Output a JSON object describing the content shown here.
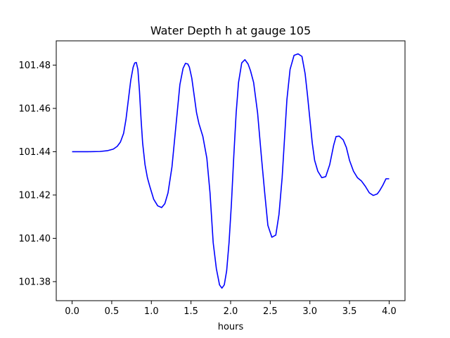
{
  "chart_data": {
    "type": "line",
    "title": "Water Depth h at gauge 105",
    "xlabel": "hours",
    "ylabel": "",
    "xlim": [
      -0.2,
      4.2
    ],
    "ylim": [
      101.3712,
      101.4912
    ],
    "xticks": [
      0.0,
      0.5,
      1.0,
      1.5,
      2.0,
      2.5,
      3.0,
      3.5,
      4.0
    ],
    "xtick_labels": [
      "0.0",
      "0.5",
      "1.0",
      "1.5",
      "2.0",
      "2.5",
      "3.0",
      "3.5",
      "4.0"
    ],
    "yticks": [
      101.38,
      101.4,
      101.42,
      101.44,
      101.46,
      101.48
    ],
    "ytick_labels": [
      "101.38",
      "101.40",
      "101.42",
      "101.44",
      "101.46",
      "101.48"
    ],
    "grid": false,
    "series": [
      {
        "color": "#0000ff",
        "x": [
          0.0,
          0.2,
          0.35,
          0.45,
          0.52,
          0.57,
          0.61,
          0.65,
          0.68,
          0.71,
          0.74,
          0.77,
          0.79,
          0.81,
          0.83,
          0.85,
          0.87,
          0.89,
          0.92,
          0.95,
          0.98,
          1.03,
          1.08,
          1.13,
          1.17,
          1.21,
          1.26,
          1.31,
          1.36,
          1.4,
          1.43,
          1.46,
          1.48,
          1.51,
          1.54,
          1.57,
          1.6,
          1.65,
          1.7,
          1.74,
          1.78,
          1.82,
          1.86,
          1.89,
          1.92,
          1.95,
          1.98,
          2.01,
          2.04,
          2.07,
          2.1,
          2.14,
          2.18,
          2.22,
          2.25,
          2.29,
          2.34,
          2.39,
          2.43,
          2.47,
          2.52,
          2.57,
          2.61,
          2.65,
          2.68,
          2.71,
          2.75,
          2.8,
          2.85,
          2.9,
          2.94,
          2.97,
          3.0,
          3.03,
          3.06,
          3.1,
          3.15,
          3.2,
          3.25,
          3.3,
          3.33,
          3.37,
          3.42,
          3.46,
          3.5,
          3.55,
          3.6,
          3.65,
          3.7,
          3.75,
          3.8,
          3.85,
          3.88,
          3.92,
          3.96,
          4.0
        ],
        "y": [
          101.44,
          101.44,
          101.4401,
          101.4405,
          101.4412,
          101.4425,
          101.4445,
          101.4485,
          101.455,
          101.464,
          101.473,
          101.479,
          101.481,
          101.4812,
          101.478,
          101.468,
          101.455,
          101.444,
          101.434,
          101.428,
          101.424,
          101.418,
          101.415,
          101.4142,
          101.416,
          101.421,
          101.433,
          101.452,
          101.471,
          101.4785,
          101.4808,
          101.4805,
          101.479,
          101.474,
          101.466,
          101.458,
          101.453,
          101.447,
          101.437,
          101.421,
          101.398,
          101.386,
          101.3785,
          101.377,
          101.3785,
          101.385,
          101.398,
          101.416,
          101.438,
          101.458,
          101.472,
          101.481,
          101.4825,
          101.4805,
          101.4775,
          101.472,
          101.458,
          101.437,
          101.421,
          101.406,
          101.4005,
          101.4015,
          101.411,
          101.428,
          101.446,
          101.464,
          101.478,
          101.4845,
          101.4852,
          101.484,
          101.476,
          101.466,
          101.455,
          101.444,
          101.436,
          101.431,
          101.428,
          101.4285,
          101.434,
          101.443,
          101.447,
          101.4472,
          101.4455,
          101.442,
          101.436,
          101.431,
          101.428,
          101.4265,
          101.424,
          101.421,
          101.4198,
          101.4205,
          101.422,
          101.4245,
          101.4275,
          101.4275
        ]
      }
    ]
  }
}
